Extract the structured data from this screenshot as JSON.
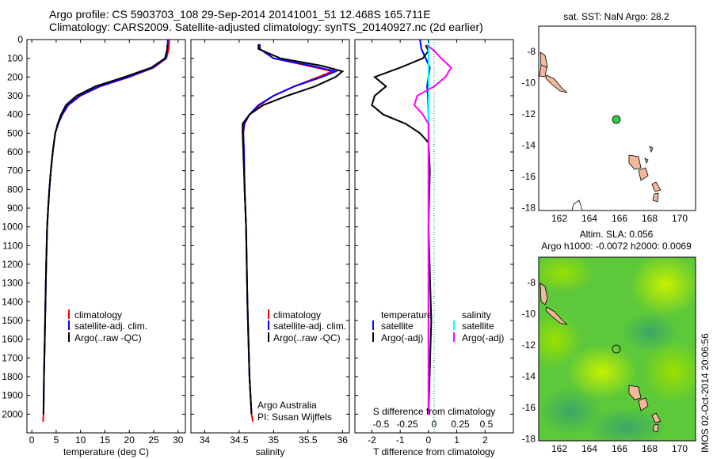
{
  "header": {
    "line1": "Argo profile: CS 5903703_108 29-Sep-2014 20141001_51 12.468S 165.711E",
    "line2": "Climatology: CARS2009. Satellite-adjusted climatology: synTS_20140927.nc (2d earlier)"
  },
  "side_label": "IMOS 02-Oct-2014 20:06:56",
  "colors": {
    "climatology": "#ff0000",
    "satellite": "#0000ff",
    "argo": "#000000",
    "t_satellite": "#0000ff",
    "s_satellite": "#00ffff",
    "s_argo": "#ff00ff",
    "land": "#f4b89a",
    "float": "#2ecc40"
  },
  "depth_axis": {
    "ticks": [
      "0",
      "100",
      "200",
      "300",
      "400",
      "500",
      "600",
      "700",
      "800",
      "900",
      "1000",
      "1100",
      "1200",
      "1300",
      "1400",
      "1500",
      "1600",
      "1700",
      "1800",
      "1900",
      "2000"
    ]
  },
  "temperature_panel": {
    "xlabel": "temperature (deg C)",
    "xticks": [
      "0",
      "5",
      "10",
      "15",
      "20",
      "25",
      "30"
    ],
    "legend": [
      "climatology",
      "satellite-adj. clim.",
      "Argo(..raw -QC)"
    ]
  },
  "salinity_panel": {
    "xlabel": "salinity",
    "xticks": [
      "34",
      "34.5",
      "35",
      "35.5",
      "36"
    ],
    "legend": [
      "climatology",
      "satellite-adj. clim.",
      "Argo(..raw -QC)"
    ],
    "note1": "Argo Australia",
    "note2": "PI: Susan Wijffels"
  },
  "difference_panel": {
    "xlabel_bottom": "T difference from climatology",
    "xlabel_top": "S difference from climatology",
    "xticks_T": [
      "-2",
      "-1",
      "0",
      "1",
      "2"
    ],
    "xticks_S": [
      "-0.5",
      "-0.25",
      "0",
      "0.25",
      "0.5"
    ],
    "legend_t_title": "temperature",
    "legend_s_title": "salinity",
    "legend_t": [
      "satellite",
      "Argo(-adj)"
    ],
    "legend_s": [
      "satellite",
      "Argo(-adj)"
    ]
  },
  "map_sst": {
    "title": "sat. SST: NaN Argo: 28.2",
    "xticks": [
      "162",
      "164",
      "166",
      "168",
      "170"
    ],
    "yticks": [
      "-8",
      "-10",
      "-12",
      "-14",
      "-16",
      "-18"
    ]
  },
  "map_sla": {
    "title1": "Altim. SLA: 0.056",
    "title2": "Argo h1000: -0.0072 h2000: 0.0069",
    "xticks": [
      "162",
      "164",
      "166",
      "168",
      "170"
    ],
    "yticks": [
      "-8",
      "-10",
      "-12",
      "-14",
      "-16",
      "-18"
    ]
  },
  "chart_data": [
    {
      "type": "line",
      "title": "",
      "xlabel": "temperature (deg C)",
      "ylabel": "",
      "xlim": [
        -1,
        31.5
      ],
      "ylim": [
        2100,
        0
      ],
      "series": [
        {
          "name": "climatology",
          "x": [
            28.2,
            28.1,
            27.6,
            25,
            20,
            14,
            10,
            7.5,
            6.3,
            5.4,
            4.8,
            4.3,
            3.9,
            3.6,
            3.35,
            3.15,
            2.95,
            2.8,
            2.65,
            2.5,
            2.4,
            2.3
          ],
          "y": [
            0,
            50,
            100,
            150,
            200,
            250,
            300,
            350,
            400,
            450,
            500,
            600,
            700,
            800,
            900,
            1000,
            1200,
            1400,
            1600,
            1800,
            2000,
            2040
          ]
        },
        {
          "name": "satellite-adj. clim.",
          "x": [
            27.9,
            27.8,
            27.5,
            24.8,
            19.8,
            13.8,
            9.8,
            7.4,
            6.2,
            5.4,
            4.8,
            4.3,
            3.9,
            3.6,
            3.35,
            3.15,
            2.95,
            2.8,
            2.65,
            2.5,
            2.4
          ],
          "y": [
            0,
            50,
            100,
            150,
            200,
            250,
            300,
            350,
            400,
            450,
            500,
            600,
            700,
            800,
            900,
            1000,
            1200,
            1400,
            1600,
            1800,
            2000
          ]
        },
        {
          "name": "Argo(..raw -QC)",
          "x": [
            27.8,
            27.8,
            27.3,
            24.5,
            19,
            13,
            9.2,
            7,
            6,
            5.3,
            4.8,
            4.3,
            3.9,
            3.6,
            3.35,
            3.15,
            2.95,
            2.8,
            2.65,
            2.5,
            2.4
          ],
          "y": [
            30,
            50,
            100,
            150,
            200,
            250,
            300,
            350,
            400,
            450,
            500,
            600,
            700,
            800,
            900,
            1000,
            1200,
            1400,
            1600,
            1800,
            2000
          ]
        }
      ]
    },
    {
      "type": "line",
      "title": "",
      "xlabel": "salinity",
      "ylabel": "",
      "xlim": [
        33.8,
        36.1
      ],
      "ylim": [
        2100,
        0
      ],
      "series": [
        {
          "name": "climatology",
          "x": [
            34.8,
            34.8,
            35.0,
            35.5,
            35.85,
            35.65,
            35.3,
            35.0,
            34.8,
            34.65,
            34.58,
            34.56,
            34.57,
            34.58,
            34.6,
            34.62,
            34.65,
            34.68,
            34.7
          ],
          "y": [
            25,
            50,
            100,
            140,
            170,
            200,
            250,
            300,
            350,
            400,
            450,
            500,
            600,
            800,
            1000,
            1400,
            1800,
            2000,
            2040
          ]
        },
        {
          "name": "satellite-adj. clim.",
          "x": [
            34.8,
            34.8,
            35.0,
            35.55,
            35.9,
            35.7,
            35.3,
            35.0,
            34.78,
            34.65,
            34.57,
            34.56,
            34.57,
            34.58,
            34.6,
            34.62,
            34.65,
            34.68
          ],
          "y": [
            25,
            50,
            100,
            140,
            170,
            200,
            250,
            300,
            350,
            400,
            450,
            500,
            600,
            800,
            1000,
            1400,
            1800,
            2000
          ]
        },
        {
          "name": "Argo(..raw -QC)",
          "x": [
            34.78,
            34.78,
            35.1,
            35.7,
            36.0,
            35.9,
            35.6,
            35.2,
            34.85,
            34.65,
            34.55,
            34.55,
            34.56,
            34.58,
            34.6,
            34.62,
            34.65,
            34.68
          ],
          "y": [
            25,
            50,
            100,
            140,
            170,
            200,
            250,
            300,
            350,
            400,
            450,
            500,
            600,
            800,
            1000,
            1400,
            1800,
            2000
          ]
        }
      ]
    },
    {
      "type": "line",
      "title": "",
      "xlabel": "T difference from climatology",
      "xlabel_top": "S difference from climatology",
      "ylabel": "",
      "xlim": [
        -2.6,
        3.0
      ],
      "ylim": [
        2100,
        0
      ],
      "series": [
        {
          "name": "satellite",
          "quantity": "temperature",
          "x": [
            -0.3,
            -0.25,
            -0.1,
            0.05,
            0.0,
            -0.05,
            -0.02,
            0,
            0,
            0,
            0,
            0,
            0
          ],
          "y": [
            0,
            50,
            100,
            150,
            200,
            250,
            300,
            400,
            500,
            700,
            1000,
            1500,
            2000
          ]
        },
        {
          "name": "Argo(-adj)",
          "quantity": "temperature",
          "x": [
            -0.1,
            0.0,
            -0.2,
            -1.0,
            -1.9,
            -1.5,
            -1.9,
            -2.0,
            -1.6,
            -0.8,
            -0.3,
            0,
            0.05,
            0,
            0.1,
            0
          ],
          "y": [
            30,
            60,
            100,
            150,
            200,
            250,
            300,
            350,
            400,
            450,
            500,
            550,
            700,
            1000,
            1500,
            2000
          ]
        },
        {
          "name": "satellite",
          "quantity": "salinity",
          "x": [
            0.0,
            0.0,
            0.0,
            0.0,
            0.0,
            0.0,
            0.0,
            0.0,
            0.0
          ],
          "y": [
            0,
            100,
            200,
            300,
            500,
            700,
            1000,
            1500,
            2000
          ]
        },
        {
          "name": "Argo(-adj)",
          "quantity": "salinity",
          "x": [
            -0.05,
            0.2,
            0.45,
            0.8,
            0.6,
            0.2,
            -0.4,
            -0.5,
            -0.2,
            0.0,
            0.0,
            0.0,
            0.0,
            0.0
          ],
          "y": [
            30,
            60,
            100,
            150,
            200,
            250,
            300,
            350,
            400,
            450,
            500,
            700,
            1000,
            2000
          ]
        }
      ]
    }
  ]
}
